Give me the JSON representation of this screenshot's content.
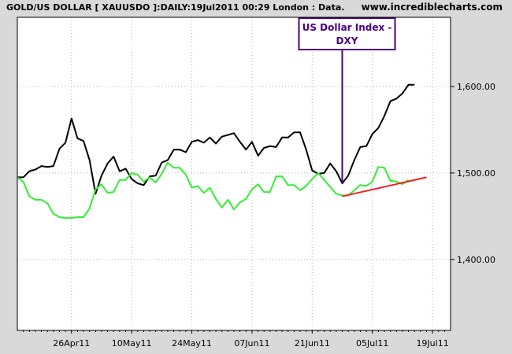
{
  "header": {
    "title": "GOLD/US DOLLAR [ XAUUSDO ]:DAILY:19Jul2011 00:29 London : Data.",
    "site": "www.incrediblecharts.com"
  },
  "colors": {
    "background": "#d9d9d9",
    "plot_background": "#ffffff",
    "gold_line": "#000000",
    "dxy_line": "#33ee33",
    "trendline": "#ee2222",
    "annotation": "#4b0082"
  },
  "chart_data": {
    "type": "line",
    "title": "GOLD/US DOLLAR [ XAUUSDO ]:DAILY:19Jul2011 00:29 London : Data.",
    "xlabel": "",
    "ylabel": "",
    "x_tick_labels": [
      "26Apr11",
      "10May11",
      "24May11",
      "07Jun11",
      "21Jun11",
      "05Jul11",
      "19Jul11"
    ],
    "x_ticks": [
      9,
      19,
      29,
      39,
      49,
      59,
      69
    ],
    "y_tick_labels": [
      "1,400.00",
      "1,500.00",
      "1,600.00"
    ],
    "y_ticks": [
      1400,
      1500,
      1600
    ],
    "xlim": [
      0,
      72
    ],
    "ylim": [
      1318,
      1680
    ],
    "grid": true,
    "legend": "none",
    "series": [
      {
        "values": [
          [
            0,
            1495
          ],
          [
            1,
            1495
          ],
          [
            2,
            1502
          ],
          [
            3,
            1504
          ],
          [
            4,
            1508
          ],
          [
            5,
            1507
          ],
          [
            6,
            1508
          ],
          [
            7,
            1528
          ],
          [
            8,
            1535
          ],
          [
            9,
            1563
          ],
          [
            10,
            1540
          ],
          [
            11,
            1537
          ],
          [
            12,
            1515
          ],
          [
            13,
            1476
          ],
          [
            14,
            1497
          ],
          [
            15,
            1511
          ],
          [
            16,
            1519
          ],
          [
            17,
            1502
          ],
          [
            18,
            1505
          ],
          [
            19,
            1493
          ],
          [
            20,
            1488
          ],
          [
            21,
            1486
          ],
          [
            22,
            1496
          ],
          [
            23,
            1497
          ],
          [
            24,
            1512
          ],
          [
            25,
            1515
          ],
          [
            26,
            1527
          ],
          [
            27,
            1527
          ],
          [
            28,
            1524
          ],
          [
            29,
            1536
          ],
          [
            30,
            1538
          ],
          [
            31,
            1535
          ],
          [
            32,
            1541
          ],
          [
            33,
            1534
          ],
          [
            34,
            1542
          ],
          [
            35,
            1544
          ],
          [
            36,
            1546
          ],
          [
            37,
            1536
          ],
          [
            38,
            1527
          ],
          [
            39,
            1536
          ],
          [
            40,
            1520
          ],
          [
            41,
            1529
          ],
          [
            42,
            1531
          ],
          [
            43,
            1530
          ],
          [
            44,
            1541
          ],
          [
            45,
            1541
          ],
          [
            46,
            1547
          ],
          [
            47,
            1547
          ],
          [
            48,
            1527
          ],
          [
            49,
            1503
          ],
          [
            50,
            1499
          ],
          [
            51,
            1500
          ],
          [
            52,
            1511
          ],
          [
            53,
            1502
          ],
          [
            54,
            1488
          ],
          [
            55,
            1497
          ],
          [
            56,
            1515
          ],
          [
            57,
            1530
          ],
          [
            58,
            1531
          ],
          [
            59,
            1545
          ],
          [
            60,
            1552
          ],
          [
            61,
            1566
          ],
          [
            62,
            1583
          ],
          [
            63,
            1586
          ],
          [
            64,
            1592
          ],
          [
            65,
            1602
          ],
          [
            66,
            1602
          ]
        ]
      },
      {
        "values": [
          [
            0,
            1495
          ],
          [
            1,
            1490
          ],
          [
            2,
            1473
          ],
          [
            3,
            1469
          ],
          [
            4,
            1469
          ],
          [
            5,
            1465
          ],
          [
            6,
            1453
          ],
          [
            7,
            1449
          ],
          [
            8,
            1448
          ],
          [
            9,
            1448
          ],
          [
            10,
            1449
          ],
          [
            11,
            1449
          ],
          [
            12,
            1459
          ],
          [
            13,
            1481
          ],
          [
            14,
            1487
          ],
          [
            15,
            1477
          ],
          [
            16,
            1478
          ],
          [
            17,
            1492
          ],
          [
            18,
            1492
          ],
          [
            19,
            1500
          ],
          [
            20,
            1498
          ],
          [
            21,
            1490
          ],
          [
            22,
            1495
          ],
          [
            23,
            1489
          ],
          [
            24,
            1499
          ],
          [
            25,
            1512
          ],
          [
            26,
            1506
          ],
          [
            27,
            1506
          ],
          [
            28,
            1498
          ],
          [
            29,
            1483
          ],
          [
            30,
            1485
          ],
          [
            31,
            1477
          ],
          [
            32,
            1483
          ],
          [
            33,
            1470
          ],
          [
            34,
            1460
          ],
          [
            35,
            1469
          ],
          [
            36,
            1458
          ],
          [
            37,
            1466
          ],
          [
            38,
            1470
          ],
          [
            39,
            1481
          ],
          [
            40,
            1487
          ],
          [
            41,
            1478
          ],
          [
            42,
            1478
          ],
          [
            43,
            1496
          ],
          [
            44,
            1496
          ],
          [
            45,
            1486
          ],
          [
            46,
            1486
          ],
          [
            47,
            1480
          ],
          [
            48,
            1485
          ],
          [
            49,
            1493
          ],
          [
            50,
            1500
          ],
          [
            51,
            1492
          ],
          [
            52,
            1484
          ],
          [
            53,
            1476
          ],
          [
            54,
            1474
          ],
          [
            55,
            1474
          ],
          [
            56,
            1480
          ],
          [
            57,
            1486
          ],
          [
            58,
            1485
          ],
          [
            59,
            1490
          ],
          [
            60,
            1507
          ],
          [
            61,
            1506
          ],
          [
            62,
            1491
          ],
          [
            63,
            1490
          ],
          [
            64,
            1487
          ],
          [
            65,
            1492
          ]
        ]
      }
    ],
    "trendline": {
      "from": [
        54,
        1473
      ],
      "to": [
        68,
        1495
      ]
    },
    "annotations": [
      {
        "text": "US Dollar Index -",
        "line2": "DXY",
        "x": 54
      }
    ]
  }
}
